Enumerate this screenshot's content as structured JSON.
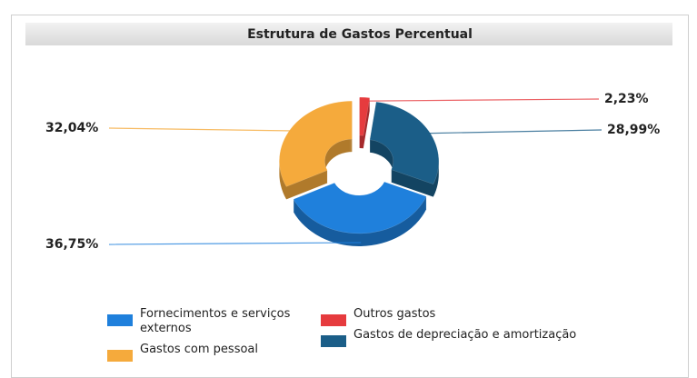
{
  "chart_data": {
    "type": "donut3d",
    "title": "Estrutura de Gastos Percentual",
    "categories": [
      "Fornecimentos e serviços externos",
      "Outros gastos",
      "Gastos com pessoal",
      "Gastos de depreciação e amortização"
    ],
    "values": [
      36.75,
      2.23,
      32.04,
      28.99
    ],
    "value_labels": [
      "36,75%",
      "2,23%",
      "32,04%",
      "28,99%"
    ],
    "colors": [
      "#1f80dc",
      "#e63b3e",
      "#f5aa3c",
      "#1b5e88"
    ],
    "legend": "bottom"
  }
}
